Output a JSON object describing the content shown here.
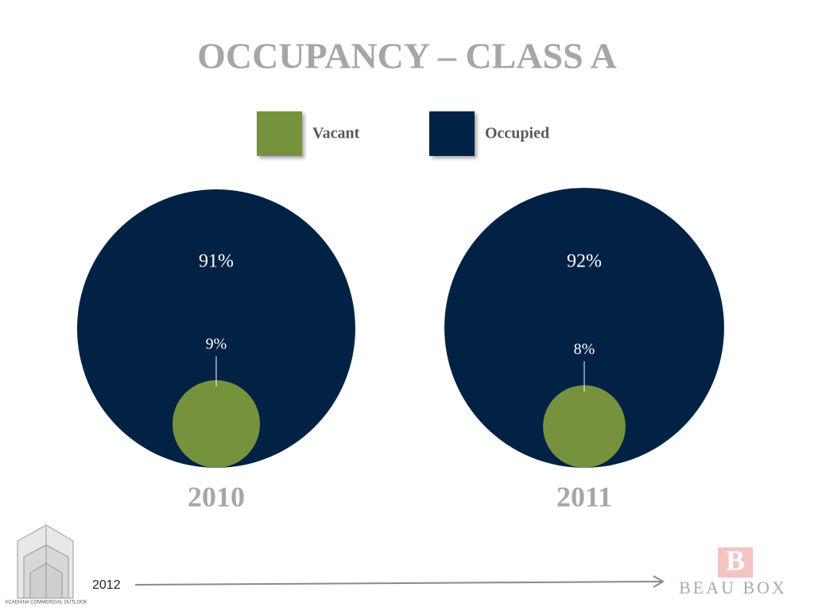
{
  "title": "OCCUPANCY – CLASS A",
  "chart_data": [
    {
      "type": "nested-circle",
      "title": "2010",
      "categories": [
        "Vacant",
        "Occupied"
      ],
      "values": [
        9,
        91
      ],
      "value_labels": [
        "9%",
        "91%"
      ],
      "colors": [
        "#77923c",
        "#022245"
      ]
    },
    {
      "type": "nested-circle",
      "title": "2011",
      "categories": [
        "Vacant",
        "Occupied"
      ],
      "values": [
        8,
        92
      ],
      "value_labels": [
        "8%",
        "92%"
      ],
      "colors": [
        "#77923c",
        "#022245"
      ]
    }
  ],
  "footer": {
    "year": "2012",
    "logo_text": "ACADIANA COMMERCIAL OUTLOOK",
    "brand_mark": "B",
    "brand": "BEAU BOX"
  }
}
